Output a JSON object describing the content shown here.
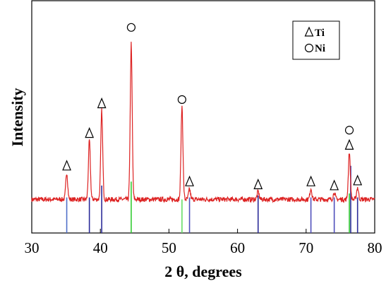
{
  "chart_data": {
    "type": "line",
    "title": "",
    "xlabel": "2 θ, degrees",
    "ylabel": "Intensity",
    "xlim": [
      30,
      80
    ],
    "ylim": [
      0,
      100
    ],
    "x_ticks": [
      "30",
      "40",
      "50",
      "60",
      "70",
      "80"
    ],
    "grid": false,
    "legend": {
      "placement": "top-right",
      "entries": [
        {
          "marker": "triangle",
          "label": "Ti"
        },
        {
          "marker": "circle",
          "label": "Ni"
        }
      ]
    },
    "baseline": 17,
    "noise_amplitude": 1.2,
    "series": [
      {
        "color": "#dd2222",
        "peaks": [
          {
            "x": 35.1,
            "y": 30.5
          },
          {
            "x": 38.4,
            "y": 47
          },
          {
            "x": 40.2,
            "y": 62
          },
          {
            "x": 44.5,
            "y": 96
          },
          {
            "x": 51.9,
            "y": 64
          },
          {
            "x": 53.0,
            "y": 22
          },
          {
            "x": 63.0,
            "y": 21
          },
          {
            "x": 70.7,
            "y": 22.5
          },
          {
            "x": 74.1,
            "y": 20.5
          },
          {
            "x": 76.3,
            "y": 41
          },
          {
            "x": 77.5,
            "y": 23
          }
        ]
      }
    ],
    "reference_lines": [
      {
        "phase": "Ti",
        "color": "#4f6fc9",
        "x": 35.1,
        "top": 18
      },
      {
        "phase": "Ti",
        "color": "#2c2c99",
        "x": 38.4,
        "top": 18
      },
      {
        "phase": "Ti",
        "color": "#2c2c99",
        "x": 40.2,
        "top": 24
      },
      {
        "phase": "Ni",
        "color": "#33cc33",
        "x": 44.5,
        "top": 26
      },
      {
        "phase": "Ni",
        "color": "#66dd66",
        "x": 51.9,
        "top": 17
      },
      {
        "phase": "Ti",
        "color": "#5050bb",
        "x": 53.0,
        "top": 18
      },
      {
        "phase": "Ti",
        "color": "#2c2c99",
        "x": 63.0,
        "top": 19
      },
      {
        "phase": "Ti",
        "color": "#5050bb",
        "x": 70.7,
        "top": 18
      },
      {
        "phase": "Ti",
        "color": "#5050bb",
        "x": 74.1,
        "top": 18
      },
      {
        "phase": "Ni",
        "color": "#33cc33",
        "x": 76.3,
        "top": 20
      },
      {
        "phase": "Ti",
        "color": "#2c2c99",
        "x": 76.5,
        "top": 34
      },
      {
        "phase": "Ti",
        "color": "#2c2c99",
        "x": 77.5,
        "top": 18
      }
    ],
    "annotations": [
      {
        "marker": "triangle",
        "x": 35.1,
        "y": 34
      },
      {
        "marker": "triangle",
        "x": 38.4,
        "y": 50.5
      },
      {
        "marker": "triangle",
        "x": 40.2,
        "y": 65.5
      },
      {
        "marker": "circle",
        "x": 44.5,
        "y": 104
      },
      {
        "marker": "circle",
        "x": 51.9,
        "y": 67.5
      },
      {
        "marker": "triangle",
        "x": 53.0,
        "y": 26
      },
      {
        "marker": "triangle",
        "x": 63.0,
        "y": 24.5
      },
      {
        "marker": "triangle",
        "x": 70.7,
        "y": 26
      },
      {
        "marker": "triangle",
        "x": 74.1,
        "y": 24
      },
      {
        "marker": "circle",
        "x": 76.3,
        "y": 52
      },
      {
        "marker": "triangle",
        "x": 76.3,
        "y": 44.5
      },
      {
        "marker": "triangle",
        "x": 77.5,
        "y": 26.5
      }
    ]
  }
}
